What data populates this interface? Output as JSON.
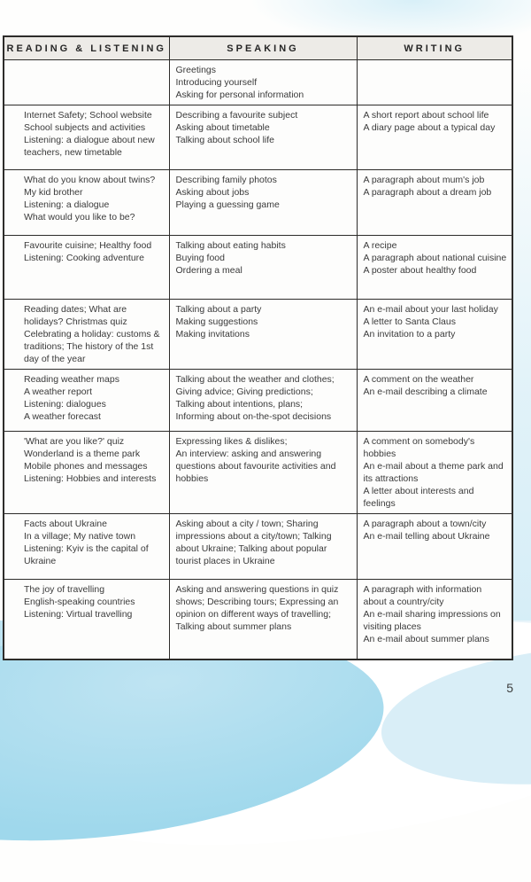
{
  "page": {
    "number": "5"
  },
  "colors": {
    "wave_dark": "#9fd8ec",
    "wave_mid": "#bfe4f2",
    "wave_light": "#d9eef7",
    "wave_lighter": "#eaf5fa"
  },
  "table": {
    "headers": [
      {
        "label": "READING & LISTENING"
      },
      {
        "label": "SPEAKING"
      },
      {
        "label": "WRITING"
      }
    ],
    "rows": [
      {
        "reading": [],
        "speaking": [
          "Greetings",
          "Introducing yourself",
          "Asking for personal information"
        ],
        "writing": []
      },
      {
        "reading": [
          "Internet Safety; School website",
          "School subjects and activities",
          "Listening: a dialogue about new teachers, new timetable"
        ],
        "speaking": [
          "Describing a favourite subject",
          "Asking about timetable",
          "Talking about school life"
        ],
        "writing": [
          "A short report about school life",
          "A diary page about a typical day"
        ]
      },
      {
        "reading": [
          "What do you know about twins?",
          "My kid brother",
          "Listening: a dialogue",
          "What would you like to be?"
        ],
        "speaking": [
          "Describing family photos",
          "Asking about jobs",
          "Playing a guessing game"
        ],
        "writing": [
          "A paragraph about mum's job",
          "A paragraph about a dream job"
        ]
      },
      {
        "reading": [
          "Favourite cuisine; Healthy food",
          "Listening: Cooking adventure"
        ],
        "speaking": [
          "Talking about eating habits",
          "Buying food",
          "Ordering a meal"
        ],
        "writing": [
          "A recipe",
          "A paragraph about national cuisine",
          "A poster about healthy food"
        ]
      },
      {
        "reading": [
          "Reading dates; What are holidays? Christmas quiz",
          "Celebrating a holiday: customs & traditions; The history of the 1st day of the year"
        ],
        "speaking": [
          "Talking about a party",
          "Making suggestions",
          "Making invitations"
        ],
        "writing": [
          "An e-mail about your last holiday",
          "A letter to Santa Claus",
          "An invitation to a party"
        ]
      },
      {
        "reading": [
          "Reading weather maps",
          "A weather report",
          "Listening: dialogues",
          "A weather forecast"
        ],
        "speaking": [
          "Talking about the weather and clothes;",
          "Giving advice; Giving predictions;",
          "Talking about intentions, plans;",
          "Informing about on-the-spot decisions"
        ],
        "writing": [
          "A comment on the weather",
          "An e-mail describing a climate"
        ]
      },
      {
        "reading": [
          "'What are you like?' quiz",
          "Wonderland is a theme park",
          "Mobile phones and messages",
          "Listening: Hobbies and interests"
        ],
        "speaking": [
          "Expressing likes & dislikes;",
          "An interview: asking and answering questions about favourite activities and hobbies"
        ],
        "writing": [
          "A comment on somebody's hobbies",
          "An e-mail about a theme park and its attractions",
          "A letter about interests and feelings"
        ]
      },
      {
        "reading": [
          "Facts about Ukraine",
          "In a village; My native town",
          "Listening: Kyiv is the capital of Ukraine"
        ],
        "speaking": [
          "Asking about a city / town; Sharing impressions about a city/town; Talking about Ukraine; Talking about popular tourist places in Ukraine"
        ],
        "writing": [
          "A paragraph about a town/city",
          "An e-mail telling about Ukraine"
        ]
      },
      {
        "reading": [
          "The joy of travelling",
          "English-speaking countries",
          "Listening: Virtual travelling"
        ],
        "speaking": [
          "Asking and answering questions in quiz shows; Describing tours; Expressing an opinion on different ways of travelling; Talking about summer plans"
        ],
        "writing": [
          "A paragraph with information about a country/city",
          "An e-mail sharing impressions on visiting places",
          "An e-mail about summer plans"
        ]
      }
    ]
  }
}
